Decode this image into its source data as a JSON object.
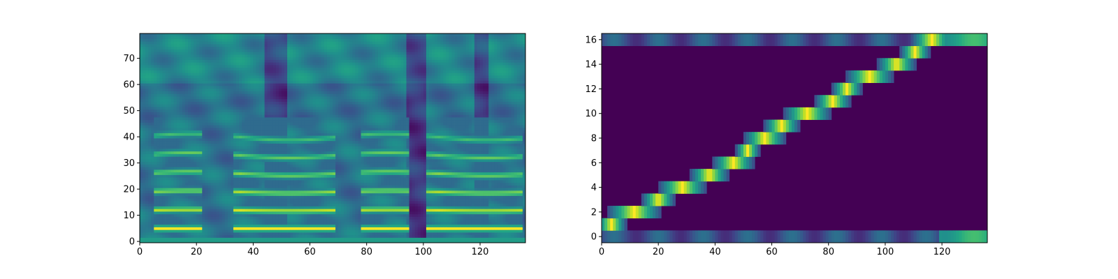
{
  "chart_data": [
    {
      "type": "heatmap",
      "title": "",
      "xlabel": "",
      "ylabel": "",
      "xlim": [
        0,
        136
      ],
      "ylim": [
        0,
        80
      ],
      "xticks": [
        "0",
        "20",
        "40",
        "60",
        "80",
        "100",
        "120"
      ],
      "yticks": [
        "0",
        "10",
        "20",
        "30",
        "40",
        "50",
        "60",
        "70"
      ],
      "colormap": "viridis",
      "description_of_values": "mel spectrogram, 80 bins x 136 frames",
      "voiced_segments": [
        [
          5,
          21
        ],
        [
          33,
          68
        ],
        [
          78,
          94
        ],
        [
          101,
          134
        ]
      ],
      "silent_columns": [
        [
          44,
          51
        ],
        [
          94,
          100
        ],
        [
          118,
          122
        ]
      ],
      "bright_harmonic_bins": [
        5,
        12,
        19,
        26,
        33,
        40
      ]
    },
    {
      "type": "heatmap",
      "title": "",
      "xlabel": "",
      "ylabel": "",
      "xlim": [
        0,
        136
      ],
      "ylim": [
        0,
        17
      ],
      "xticks": [
        "0",
        "20",
        "40",
        "60",
        "80",
        "100",
        "120"
      ],
      "yticks": [
        "0",
        "2",
        "4",
        "6",
        "8",
        "10",
        "12",
        "14",
        "16"
      ],
      "colormap": "viridis",
      "description_of_values": "alignment matrix, 17 tokens x 136 frames",
      "alignment_path": [
        {
          "row": 1,
          "start": 0,
          "end": 6
        },
        {
          "row": 2,
          "start": 4,
          "end": 18
        },
        {
          "row": 3,
          "start": 16,
          "end": 23
        },
        {
          "row": 4,
          "start": 22,
          "end": 34
        },
        {
          "row": 5,
          "start": 33,
          "end": 42
        },
        {
          "row": 6,
          "start": 41,
          "end": 51
        },
        {
          "row": 7,
          "start": 49,
          "end": 53
        },
        {
          "row": 8,
          "start": 52,
          "end": 62
        },
        {
          "row": 9,
          "start": 59,
          "end": 67
        },
        {
          "row": 10,
          "start": 66,
          "end": 78
        },
        {
          "row": 11,
          "start": 77,
          "end": 85
        },
        {
          "row": 12,
          "start": 83,
          "end": 89
        },
        {
          "row": 13,
          "start": 88,
          "end": 100
        },
        {
          "row": 14,
          "start": 99,
          "end": 108
        },
        {
          "row": 15,
          "start": 107,
          "end": 113
        },
        {
          "row": 16,
          "start": 111,
          "end": 121
        }
      ]
    }
  ]
}
